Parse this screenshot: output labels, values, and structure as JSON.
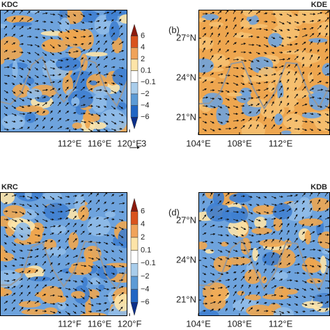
{
  "panels": [
    {
      "title": "KDC",
      "x_ticks": [
        "112°E",
        "116°E",
        "120°E"
      ],
      "colorbar": [
        "6",
        "4",
        "2",
        "0.1",
        "−0.1",
        "−2",
        "−4",
        "−6"
      ],
      "reference_vector": "3"
    },
    {
      "title": "KDE",
      "label": "(b)",
      "y_ticks": [
        "27°N",
        "24°N",
        "21°N"
      ],
      "x_ticks": [
        "104°E",
        "108°E",
        "112°E"
      ]
    },
    {
      "title": "KRC",
      "x_ticks": [
        "112°F",
        "116°E",
        "120°F"
      ],
      "colorbar": [
        "6",
        "4",
        "2",
        "0.1",
        "−0.1",
        "−2",
        "−4",
        "−6"
      ]
    },
    {
      "title": "KDB",
      "label": "(d)",
      "y_ticks": [
        "27°N",
        "24°N",
        "21°N"
      ],
      "x_ticks": [
        "104°E",
        "108°E",
        "112°E"
      ]
    }
  ]
}
